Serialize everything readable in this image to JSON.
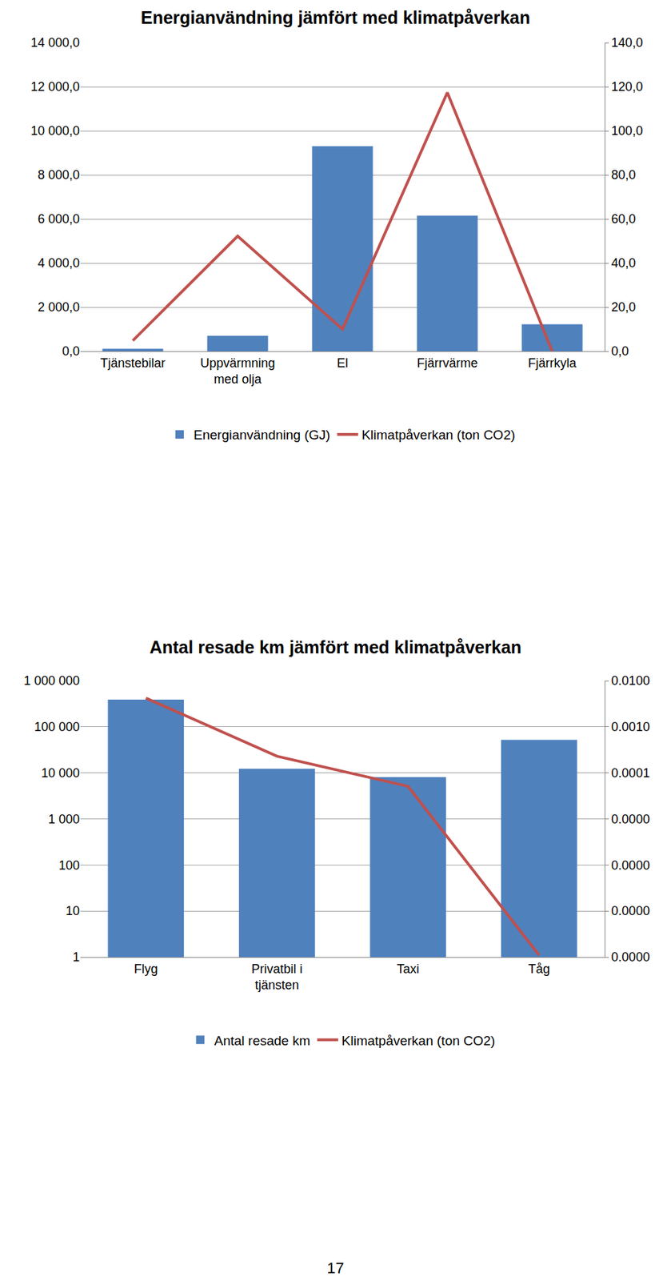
{
  "chart_data": [
    {
      "type": "bar",
      "title": "Energianvändning jämfört med klimatpåverkan",
      "categories": [
        "Tjänstebilar",
        "Uppvärmning med olja",
        "El",
        "Fjärrvärme",
        "Fjärrkyla"
      ],
      "series": [
        {
          "name": "Energianvändning (GJ)",
          "type": "bar",
          "color": "#4f81bd",
          "values": [
            110,
            700,
            9300,
            6150,
            1220
          ]
        },
        {
          "name": "Klimatpåverkan (ton CO2)",
          "type": "line",
          "axis": "y2",
          "color": "#c0504d",
          "values": [
            4.8,
            52.2,
            10,
            117.4,
            0
          ]
        }
      ],
      "ylim": [
        0,
        14000
      ],
      "yticks": [
        {
          "value": 0,
          "label": "0,0"
        },
        {
          "value": 2000,
          "label": "2 000,0"
        },
        {
          "value": 4000,
          "label": "4 000,0"
        },
        {
          "value": 6000,
          "label": "6 000,0"
        },
        {
          "value": 8000,
          "label": "8 000,0"
        },
        {
          "value": 10000,
          "label": "10 000,0"
        },
        {
          "value": 12000,
          "label": "12 000,0"
        },
        {
          "value": 14000,
          "label": "14 000,0"
        }
      ],
      "y2lim": [
        0,
        140
      ],
      "y2ticks": [
        {
          "value": 0,
          "label": "0,0"
        },
        {
          "value": 20,
          "label": "20,0"
        },
        {
          "value": 40,
          "label": "40,0"
        },
        {
          "value": 60,
          "label": "60,0"
        },
        {
          "value": 80,
          "label": "80,0"
        },
        {
          "value": 100,
          "label": "100,0"
        },
        {
          "value": 120,
          "label": "120,0"
        },
        {
          "value": 140,
          "label": "140,0"
        }
      ],
      "grid": true,
      "legend": "bottom"
    },
    {
      "type": "bar",
      "title": "Antal resade km jämfört med klimatpåverkan",
      "categories": [
        "Flyg",
        "Privatbil i tjänsten",
        "Taxi",
        "Tåg"
      ],
      "series": [
        {
          "name": "Antal resade km",
          "type": "bar",
          "color": "#4f81bd",
          "values": [
            390000,
            12300,
            8100,
            52000
          ]
        },
        {
          "name": "Klimatpåverkan (ton CO2)",
          "type": "line",
          "axis": "y2",
          "color": "#c0504d",
          "values": [
            0.0042,
            0.00023,
            5.1e-05,
            1.1e-08
          ]
        }
      ],
      "log": "y",
      "ylim": [
        1,
        1000000
      ],
      "yticks": [
        1,
        10,
        100,
        {
          "value": 1000,
          "label": "1 000"
        },
        {
          "value": 10000,
          "label": "10 000"
        },
        {
          "value": 100000,
          "label": "100 000"
        },
        {
          "value": 1000000,
          "label": "1 000 000"
        }
      ],
      "y2lim": [
        1e-08,
        0.01
      ],
      "y2ticks": [
        {
          "value": 1e-08,
          "label": "0.0000"
        },
        {
          "value": 1e-07,
          "label": "0.0000"
        },
        {
          "value": 1e-06,
          "label": "0.0000"
        },
        {
          "value": 1e-05,
          "label": "0.0000"
        },
        {
          "value": 0.0001,
          "label": "0.0001"
        },
        {
          "value": 0.001,
          "label": "0.0010"
        },
        {
          "value": 0.01,
          "label": "0.0100"
        }
      ],
      "grid": true,
      "legend": "bottom"
    }
  ],
  "page_number": 17
}
